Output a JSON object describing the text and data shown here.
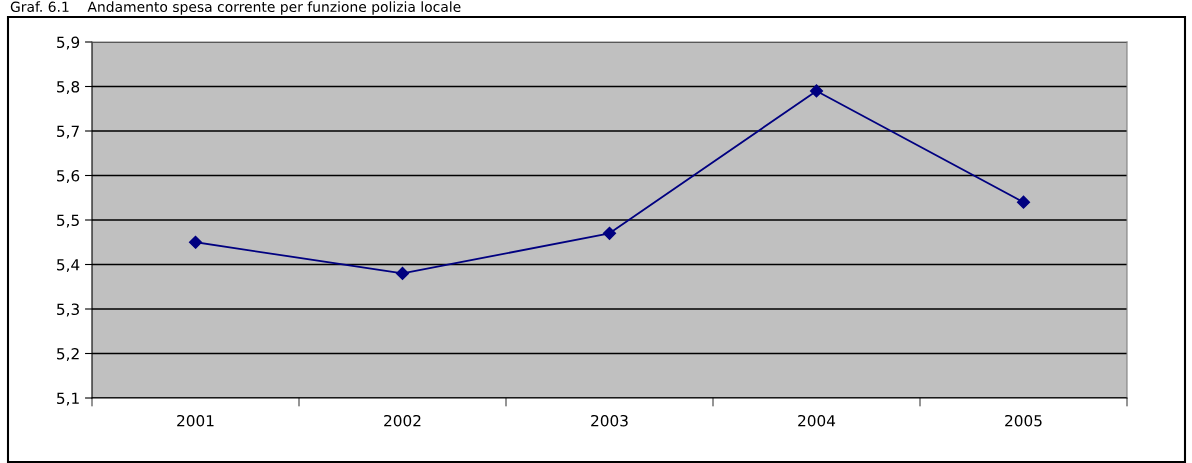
{
  "chart_data": {
    "type": "line",
    "title": "Graf. 6.1    Andamento spesa corrente per funzione polizia locale",
    "categories": [
      "2001",
      "2002",
      "2003",
      "2004",
      "2005"
    ],
    "series": [
      {
        "color": "#000080",
        "values": [
          5.45,
          5.38,
          5.47,
          5.79,
          5.54
        ]
      }
    ],
    "marker": "diamond",
    "line_style": "solid",
    "grid": "y",
    "ylim": [
      5.1,
      5.9
    ],
    "yticks": [
      {
        "value": 5.1,
        "label": "5,1"
      },
      {
        "value": 5.2,
        "label": "5,2"
      },
      {
        "value": 5.3,
        "label": "5,3"
      },
      {
        "value": 5.4,
        "label": "5,4"
      },
      {
        "value": 5.5,
        "label": "5,5"
      },
      {
        "value": 5.6,
        "label": "5,6"
      },
      {
        "value": 5.7,
        "label": "5,7"
      },
      {
        "value": 5.8,
        "label": "5,8"
      },
      {
        "value": 5.9,
        "label": "5,9"
      }
    ]
  }
}
